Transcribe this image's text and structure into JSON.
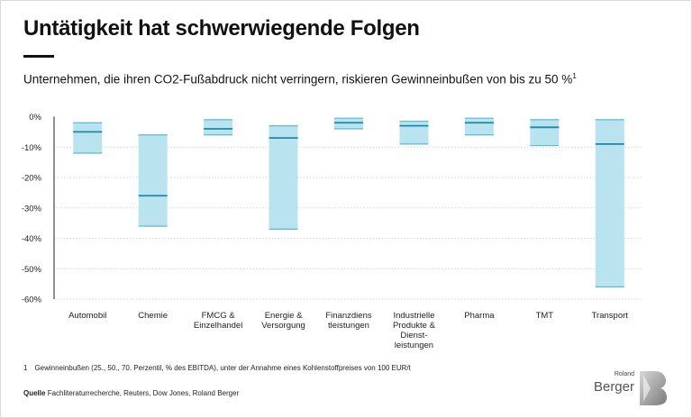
{
  "title": "Untätigkeit hat schwerwiegende Folgen",
  "subtitle": "Unternehmen, die ihren CO2-Fußabdruck nicht verringern, riskieren Gewinneinbußen von bis zu 50 %",
  "subtitle_note_marker": "1",
  "footnote": {
    "marker": "1",
    "text": "Gewinneinbußen (25., 50., 70. Perzentil, % des EBITDA), unter der Annahme eines Kohlenstoffpreises von 100 EUR/t"
  },
  "source": {
    "label": "Quelle",
    "text": "Fachliteraturrecherche, Reuters, Dow Jones, Roland Berger"
  },
  "logo": {
    "line1": "Roland",
    "line2": "Berger"
  },
  "colors": {
    "box_fill": "#b9e3ee",
    "box_edge": "#5bbad6",
    "median": "#1b88a8",
    "grid": "#c8c8c8",
    "axis": "#222222"
  },
  "chart_data": {
    "type": "box",
    "ylim": [
      -60,
      0
    ],
    "yticks": [
      0,
      -10,
      -20,
      -30,
      -40,
      -50,
      -60
    ],
    "ytick_labels": [
      "0%",
      "-10%",
      "-20%",
      "-30%",
      "-40%",
      "-50%",
      "-60%"
    ],
    "categories": [
      "Automobil",
      "Chemie",
      "FMCG & Einzelhandel",
      "Energie & Versorgung",
      "Finanzdienstleistungen",
      "Industrielle Produkte & Dienstleistungen",
      "Pharma",
      "TMT",
      "Transport"
    ],
    "category_label_lines": [
      [
        "Automobil"
      ],
      [
        "Chemie"
      ],
      [
        "FMCG &",
        "Einzelhandel"
      ],
      [
        "Energie &",
        "Versorgung"
      ],
      [
        "Finanzdiens",
        "tleistungen"
      ],
      [
        "Industrielle",
        "Produkte &",
        "Dienst-",
        "leistungen"
      ],
      [
        "Pharma"
      ],
      [
        "TMT"
      ],
      [
        "Transport"
      ]
    ],
    "p25": [
      -2,
      -6,
      -1,
      -3,
      -0.5,
      -1.5,
      -0.5,
      -1,
      -1
    ],
    "median": [
      -5,
      -26,
      -4,
      -7,
      -2,
      -3,
      -2,
      -3.5,
      -9
    ],
    "p70": [
      -12,
      -36,
      -6,
      -37,
      -4,
      -9,
      -6,
      -9.5,
      -56
    ]
  }
}
